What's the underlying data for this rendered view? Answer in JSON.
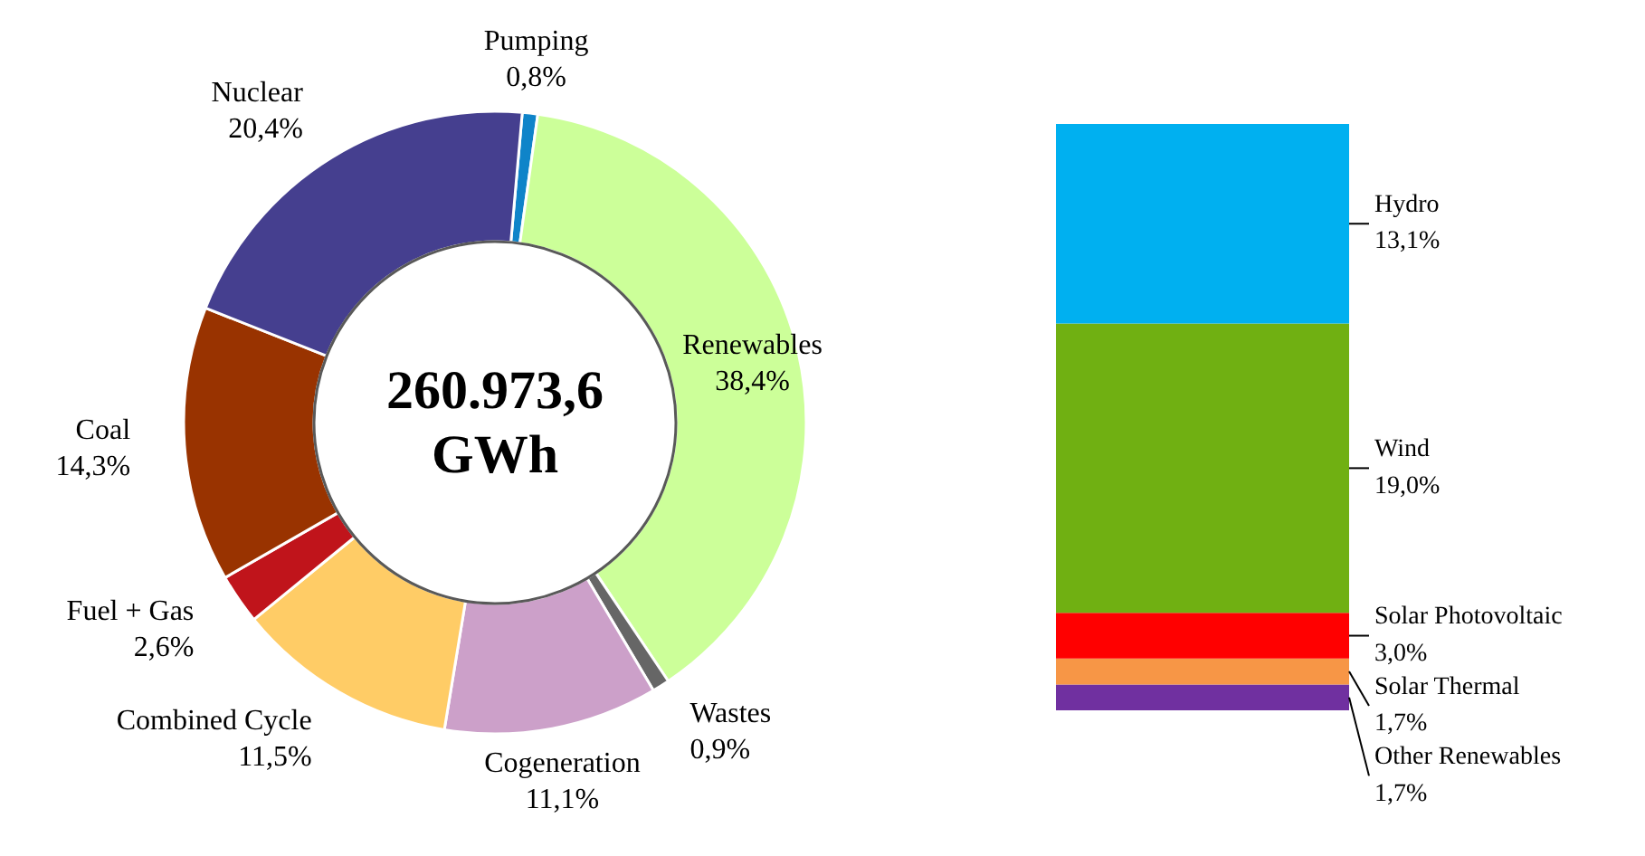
{
  "chart_data": [
    {
      "type": "donut",
      "categories": [
        "Pumping",
        "Renewables",
        "Wastes",
        "Cogeneration",
        "Combined Cycle",
        "Fuel + Gas",
        "Coal",
        "Nuclear"
      ],
      "values": [
        0.8,
        38.4,
        0.9,
        11.1,
        11.5,
        2.6,
        14.3,
        20.4
      ],
      "colors": [
        "#0f84c9",
        "#ccff99",
        "#666666",
        "#cca0c9",
        "#ffcc66",
        "#c0141b",
        "#993300",
        "#453f8f"
      ],
      "value_labels": [
        "0,8%",
        "38,4%",
        "0,9%",
        "11,1%",
        "11,5%",
        "2,6%",
        "14,3%",
        "20,4%"
      ],
      "annotations": [
        "260.973,6 GWh"
      ]
    },
    {
      "type": "bar",
      "stacked": true,
      "tick_labels": false,
      "categories": [
        null
      ],
      "series": [
        {
          "name": "Other Renewables",
          "color": "#7030a0",
          "values": [
            1.7
          ],
          "value_labels": [
            "1,7%"
          ]
        },
        {
          "name": "Solar Thermal",
          "color": "#f79646",
          "values": [
            1.7
          ],
          "value_labels": [
            "1,7%"
          ]
        },
        {
          "name": "Solar Photovoltaic",
          "color": "#ff0000",
          "values": [
            3.0
          ],
          "value_labels": [
            "3,0%"
          ]
        },
        {
          "name": "Wind",
          "color": "#70b012",
          "values": [
            19.0
          ],
          "value_labels": [
            "19,0%"
          ]
        },
        {
          "name": "Hydro",
          "color": "#00b0f0",
          "values": [
            13.1
          ],
          "value_labels": [
            "13,1%"
          ]
        }
      ]
    }
  ]
}
